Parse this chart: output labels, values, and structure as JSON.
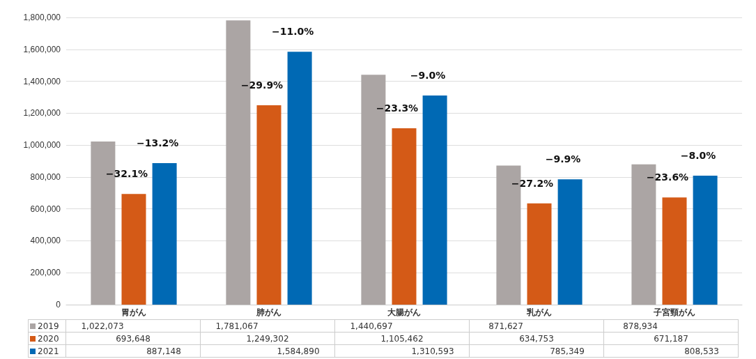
{
  "chart_data": {
    "type": "bar",
    "categories": [
      "胃がん",
      "肺がん",
      "大腸がん",
      "乳がん",
      "子宮頸がん"
    ],
    "series": [
      {
        "name": "2019",
        "color": "#aba5a4",
        "values": [
          1022073,
          1781067,
          1440697,
          871627,
          878934
        ],
        "value_labels": [
          "1,022,073",
          "1,781,067",
          "1,440,697",
          "871,627",
          "878,934"
        ]
      },
      {
        "name": "2020",
        "color": "#d45a17",
        "values": [
          693648,
          1249302,
          1105462,
          634753,
          671187
        ],
        "value_labels": [
          "693,648",
          "1,249,302",
          "1,105,462",
          "634,753",
          "671,187"
        ]
      },
      {
        "name": "2021",
        "color": "#0069b4",
        "values": [
          887148,
          1584890,
          1310593,
          785349,
          808533
        ],
        "value_labels": [
          "887,148",
          "1,584,890",
          "1,310,593",
          "785,349",
          "808,533"
        ]
      }
    ],
    "ylim": [
      0,
      1800000
    ],
    "yticks": [
      0,
      {
        "value": 200000,
        "label": "200,000"
      },
      {
        "value": 400000,
        "label": "400,000"
      },
      {
        "value": 600000,
        "label": "600,000"
      },
      {
        "value": 800000,
        "label": "800,000"
      },
      {
        "value": 1000000,
        "label": "1,000,000"
      },
      {
        "value": 1200000,
        "label": "1,200,000"
      },
      {
        "value": 1400000,
        "label": "1,400,000"
      },
      {
        "value": 1600000,
        "label": "1,600,000"
      },
      {
        "value": 1800000,
        "label": "1,800,000"
      }
    ],
    "grid": "y",
    "legend": "bottom",
    "annotations": [
      "−32.1%",
      "−13.2%",
      "−29.9%",
      "−11.0%",
      "−23.3%",
      "−9.0%",
      "−27.2%",
      "−9.9%",
      "−23.6%",
      "−8.0%"
    ]
  }
}
